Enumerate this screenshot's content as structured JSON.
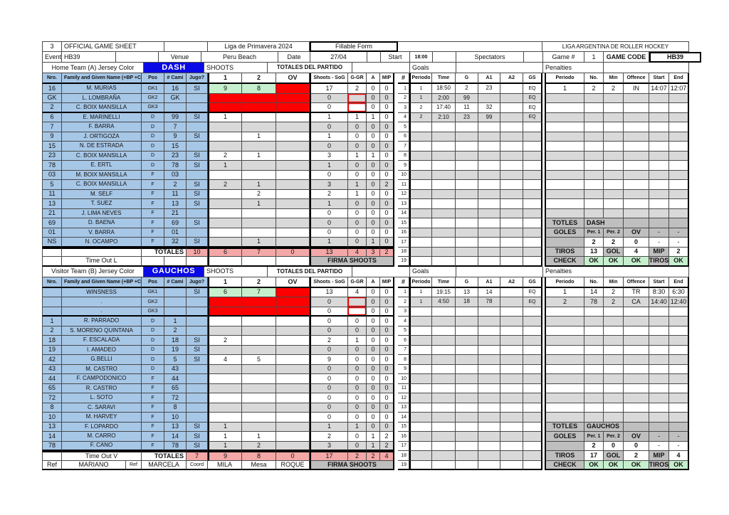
{
  "header": {
    "sheet_no": "3",
    "title": "OFFICIAL GAME SHEET",
    "league": "Liga de Primavera 2024",
    "form_type": "Fillable Form",
    "org": "LIGA ARGENTINA DE ROLLER HOCKEY",
    "event_label": "Event",
    "event": "HB39",
    "venue_label": "Venue",
    "venue": "Peru Beach",
    "date_label": "Date",
    "date": "27/04",
    "start_label": "Start",
    "start": "18:00",
    "spectators_label": "Spectators",
    "game_no_label": "Game #",
    "game_no": "1",
    "game_code_label": "GAME CODE",
    "game_code": "HB39"
  },
  "columns": {
    "nro": "Nro.",
    "name": "Family and Given Name (+BP +C",
    "pos": "Pos",
    "cami": "# Cami",
    "jugo": "Jugo?",
    "p1": "1",
    "p2": "2",
    "ov": "OV",
    "sog": "Shoots - SoG",
    "ggr": "G-GR",
    "a": "A",
    "mip": "MIP",
    "num": "#",
    "g_periodo": "Periodo",
    "time": "Time",
    "g": "G",
    "a1": "A1",
    "a2": "A2",
    "gs": "GS",
    "pen_periodo": "Periodo",
    "no": "No.",
    "min": "Min",
    "offence": "Offence",
    "start": "Start",
    "end": "End"
  },
  "officials": {
    "ref1_label": "Ref",
    "ref1": "MARIANO",
    "ref2_label": "Ref",
    "ref2": "MARCELA",
    "coord_label": "Coord",
    "coord": "MILA",
    "mesa_label": "Mesa",
    "mesa": "ROQUE"
  },
  "colors": {
    "jersey_blue": "#0A0AE6",
    "roster_blue": "#A7C7E7",
    "blocked_red": "#FE0000",
    "gk_green": "#C6EFCE",
    "totals_pink": "#F4A7A7",
    "band_gray": "#D9D9D9",
    "label_gray": "#BFBFBF",
    "ok_green": "#C6EFCE"
  },
  "teams": [
    {
      "section_label": "Home Team (A) Jersey Color",
      "name": "DASH",
      "shoots_label": "SHOOTS",
      "totals_header": "TOTALES DEL PARTIDO",
      "goals_label": "Goals",
      "penalties_label": "Penalties",
      "timeout_label": "Time Out L",
      "firma_label": "FIRMA SHOOTS",
      "players": [
        {
          "nro": "16",
          "name": "M. MURIAS",
          "pos": "GK1",
          "cami": "16",
          "jugo": "SI",
          "s1": "9",
          "s2": "8",
          "ov": "",
          "sog": "17",
          "ggr": "2",
          "a": "0",
          "mip": "0"
        },
        {
          "nro": "GK",
          "name": "L. LOMBRAÑA",
          "pos": "GK2",
          "cami": "GK",
          "jugo": "",
          "s1": "",
          "s2": "",
          "ov": "",
          "sog": "0",
          "ggr": "",
          "a": "0",
          "mip": "0"
        },
        {
          "nro": "2",
          "name": "C. BOIX MANSILLA",
          "pos": "GK3",
          "cami": "",
          "jugo": "",
          "s1": "",
          "s2": "",
          "ov": "",
          "sog": "0",
          "ggr": "",
          "a": "0",
          "mip": "0"
        },
        {
          "nro": "6",
          "name": "E. MARINELLI",
          "pos": "D",
          "cami": "99",
          "jugo": "SI",
          "s1": "1",
          "s2": "",
          "ov": "",
          "sog": "1",
          "ggr": "1",
          "a": "1",
          "mip": "0"
        },
        {
          "nro": "7",
          "name": "F. BARRA",
          "pos": "D",
          "cami": "7",
          "jugo": "",
          "s1": "",
          "s2": "",
          "ov": "",
          "sog": "0",
          "ggr": "0",
          "a": "0",
          "mip": "0"
        },
        {
          "nro": "9",
          "name": "J. ORTIGOZA",
          "pos": "D",
          "cami": "9",
          "jugo": "SI",
          "s1": "",
          "s2": "1",
          "ov": "",
          "sog": "1",
          "ggr": "0",
          "a": "0",
          "mip": "0"
        },
        {
          "nro": "15",
          "name": "N. DE ESTRADA",
          "pos": "D",
          "cami": "15",
          "jugo": "",
          "s1": "",
          "s2": "",
          "ov": "",
          "sog": "0",
          "ggr": "0",
          "a": "0",
          "mip": "0"
        },
        {
          "nro": "23",
          "name": "C. BOIX MANSILLA",
          "pos": "D",
          "cami": "23",
          "jugo": "SI",
          "s1": "2",
          "s2": "1",
          "ov": "",
          "sog": "3",
          "ggr": "1",
          "a": "1",
          "mip": "0"
        },
        {
          "nro": "78",
          "name": "E. ERTL",
          "pos": "D",
          "cami": "78",
          "jugo": "SI",
          "s1": "1",
          "s2": "",
          "ov": "",
          "sog": "1",
          "ggr": "0",
          "a": "0",
          "mip": "0"
        },
        {
          "nro": "03",
          "name": "M. BOIX MANSILLA",
          "pos": "F",
          "cami": "03",
          "jugo": "",
          "s1": "",
          "s2": "",
          "ov": "",
          "sog": "0",
          "ggr": "0",
          "a": "0",
          "mip": "0"
        },
        {
          "nro": "5",
          "name": "C. BOIX MANSILLA",
          "pos": "F",
          "cami": "2",
          "jugo": "SI",
          "s1": "2",
          "s2": "1",
          "ov": "",
          "sog": "3",
          "ggr": "1",
          "a": "0",
          "mip": "2"
        },
        {
          "nro": "11",
          "name": "M. SELF",
          "pos": "F",
          "cami": "11",
          "jugo": "SI",
          "s1": "",
          "s2": "2",
          "ov": "",
          "sog": "2",
          "ggr": "1",
          "a": "0",
          "mip": "0"
        },
        {
          "nro": "13",
          "name": "T. SUEZ",
          "pos": "F",
          "cami": "13",
          "jugo": "SI",
          "s1": "",
          "s2": "1",
          "ov": "",
          "sog": "1",
          "ggr": "0",
          "a": "0",
          "mip": "0"
        },
        {
          "nro": "21",
          "name": "J. LIMA NEVES",
          "pos": "F",
          "cami": "21",
          "jugo": "",
          "s1": "",
          "s2": "",
          "ov": "",
          "sog": "0",
          "ggr": "0",
          "a": "0",
          "mip": "0"
        },
        {
          "nro": "69",
          "name": "D. BAENA",
          "pos": "F",
          "cami": "69",
          "jugo": "SI",
          "s1": "",
          "s2": "",
          "ov": "",
          "sog": "0",
          "ggr": "0",
          "a": "0",
          "mip": "0"
        },
        {
          "nro": "01",
          "name": "V. BARRA",
          "pos": "F",
          "cami": "01",
          "jugo": "",
          "s1": "",
          "s2": "",
          "ov": "",
          "sog": "0",
          "ggr": "0",
          "a": "0",
          "mip": "0"
        },
        {
          "nro": "NS",
          "name": "N. OCAMPO",
          "pos": "F",
          "cami": "32",
          "jugo": "SI",
          "s1": "",
          "s2": "1",
          "ov": "",
          "sog": "1",
          "ggr": "0",
          "a": "1",
          "mip": "0"
        }
      ],
      "totals": {
        "label": "TOTALES",
        "jugo": "10",
        "s1": "6",
        "s2": "7",
        "ov": "0",
        "sog": "13",
        "ggr": "4",
        "a": "3",
        "mip": "2"
      },
      "goals": [
        {
          "n": "1",
          "periodo": "1",
          "time": "18:50",
          "g": "2",
          "a1": "23",
          "a2": "",
          "gs": "EQ"
        },
        {
          "n": "2",
          "periodo": "1",
          "time": "2:00",
          "g": "99",
          "a1": "",
          "a2": "",
          "gs": "EQ"
        },
        {
          "n": "3",
          "periodo": "2",
          "time": "17:40",
          "g": "11",
          "a1": "32",
          "a2": "",
          "gs": "EQ"
        },
        {
          "n": "4",
          "periodo": "2",
          "time": "2:10",
          "g": "23",
          "a1": "99",
          "a2": "",
          "gs": "EQ"
        },
        {
          "n": "5"
        },
        {
          "n": "6"
        },
        {
          "n": "7"
        },
        {
          "n": "8"
        },
        {
          "n": "9"
        },
        {
          "n": "10"
        },
        {
          "n": "11"
        },
        {
          "n": "12"
        },
        {
          "n": "13"
        },
        {
          "n": "14"
        },
        {
          "n": "15"
        },
        {
          "n": "16"
        },
        {
          "n": "17"
        },
        {
          "n": "18"
        },
        {
          "n": "19"
        }
      ],
      "penalties": [
        {
          "periodo": "1",
          "no": "2",
          "min": "2",
          "offence": "IN",
          "start": "14:07",
          "end": "12:07"
        },
        {},
        {},
        {},
        {},
        {},
        {},
        {},
        {},
        {},
        {},
        {},
        {},
        {}
      ],
      "summary": {
        "totles_label": "TOTLES",
        "team": "DASH",
        "goles_label": "GOLES",
        "per1_label": "Per. 1",
        "per2_label": "Per. 2",
        "ov_label": "OV",
        "dash_a": "-",
        "dash_b": "-",
        "per1": "2",
        "per2": "2",
        "ov": "0",
        "dash_c": "-",
        "dash_d": "-",
        "tiros_label": "TIROS",
        "tiros": "13",
        "gol_label": "GOL",
        "gol": "4",
        "mip_label": "MIP",
        "mip": "2",
        "check_label": "CHECK",
        "check1": "OK",
        "check2": "OK",
        "check3": "OK",
        "check_tiros_label": "TIROS",
        "check4": "OK"
      }
    },
    {
      "section_label": "Visitor Team (B) Jersey Color",
      "name": "GAUCHOS",
      "shoots_label": "SHOOTS",
      "totals_header": "TOTALES DEL PARTIDO",
      "goals_label": "Goals",
      "penalties_label": "Penalties",
      "timeout_label": "Time Out V",
      "firma_label": "FIRMA SHOOTS",
      "players": [
        {
          "nro": "",
          "name": "WINSNESS",
          "pos": "GK1",
          "cami": "",
          "jugo": "SI",
          "s1": "6",
          "s2": "7",
          "ov": "",
          "sog": "13",
          "ggr": "4",
          "a": "0",
          "mip": "0"
        },
        {
          "nro": "",
          "name": ".",
          "pos": "GK2",
          "cami": "",
          "jugo": "",
          "s1": "",
          "s2": "",
          "ov": "",
          "sog": "0",
          "ggr": "",
          "a": "0",
          "mip": "0"
        },
        {
          "nro": "",
          "name": ".",
          "pos": "GK3",
          "cami": "",
          "jugo": "",
          "s1": "",
          "s2": "",
          "ov": "",
          "sog": "0",
          "ggr": "",
          "a": "0",
          "mip": "0"
        },
        {
          "nro": "1",
          "name": "R. PARRADO",
          "pos": "D",
          "cami": "1",
          "jugo": "",
          "s1": "",
          "s2": "",
          "ov": "",
          "sog": "0",
          "ggr": "0",
          "a": "0",
          "mip": "0"
        },
        {
          "nro": "2",
          "name": "S. MORENO QUINTANA",
          "pos": "D",
          "cami": "2",
          "jugo": "",
          "s1": "",
          "s2": "",
          "ov": "",
          "sog": "0",
          "ggr": "0",
          "a": "0",
          "mip": "0"
        },
        {
          "nro": "18",
          "name": "F. ESCALADA",
          "pos": "D",
          "cami": "18",
          "jugo": "SI",
          "s1": "2",
          "s2": "",
          "ov": "",
          "sog": "2",
          "ggr": "1",
          "a": "0",
          "mip": "0"
        },
        {
          "nro": "19",
          "name": "I. AMADEO",
          "pos": "D",
          "cami": "19",
          "jugo": "SI",
          "s1": "",
          "s2": "",
          "ov": "",
          "sog": "0",
          "ggr": "0",
          "a": "0",
          "mip": "0"
        },
        {
          "nro": "42",
          "name": "G.BELLI",
          "pos": "D",
          "cami": "5",
          "jugo": "SI",
          "s1": "4",
          "s2": "5",
          "ov": "",
          "sog": "9",
          "ggr": "0",
          "a": "0",
          "mip": "0"
        },
        {
          "nro": "43",
          "name": "M. CASTRO",
          "pos": "D",
          "cami": "43",
          "jugo": "",
          "s1": "",
          "s2": "",
          "ov": "",
          "sog": "0",
          "ggr": "0",
          "a": "0",
          "mip": "0"
        },
        {
          "nro": "44",
          "name": "F. CAMPODONICO",
          "pos": "F",
          "cami": "44",
          "jugo": "",
          "s1": "",
          "s2": "",
          "ov": "",
          "sog": "0",
          "ggr": "0",
          "a": "0",
          "mip": "0"
        },
        {
          "nro": "65",
          "name": "R. CASTRO",
          "pos": "F",
          "cami": "65",
          "jugo": "",
          "s1": "",
          "s2": "",
          "ov": "",
          "sog": "0",
          "ggr": "0",
          "a": "0",
          "mip": "0"
        },
        {
          "nro": "72",
          "name": "L. SOTO",
          "pos": "F",
          "cami": "72",
          "jugo": "",
          "s1": "",
          "s2": "",
          "ov": "",
          "sog": "0",
          "ggr": "0",
          "a": "0",
          "mip": "0"
        },
        {
          "nro": "8",
          "name": "C. SARAVI",
          "pos": "F",
          "cami": "8",
          "jugo": "",
          "s1": "",
          "s2": "",
          "ov": "",
          "sog": "0",
          "ggr": "0",
          "a": "0",
          "mip": "0"
        },
        {
          "nro": "10",
          "name": "M. HARVEY",
          "pos": "F",
          "cami": "10",
          "jugo": "",
          "s1": "",
          "s2": "",
          "ov": "",
          "sog": "0",
          "ggr": "0",
          "a": "0",
          "mip": "0"
        },
        {
          "nro": "13",
          "name": "F. LOPARDO",
          "pos": "F",
          "cami": "13",
          "jugo": "SI",
          "s1": "1",
          "s2": "",
          "ov": "",
          "sog": "1",
          "ggr": "1",
          "a": "0",
          "mip": "0"
        },
        {
          "nro": "14",
          "name": "M. CARRO",
          "pos": "F",
          "cami": "14",
          "jugo": "SI",
          "s1": "1",
          "s2": "1",
          "ov": "",
          "sog": "2",
          "ggr": "0",
          "a": "1",
          "mip": "2"
        },
        {
          "nro": "78",
          "name": "F. CANO",
          "pos": "F",
          "cami": "78",
          "jugo": "SI",
          "s1": "1",
          "s2": "2",
          "ov": "",
          "sog": "3",
          "ggr": "0",
          "a": "1",
          "mip": "2"
        }
      ],
      "totals": {
        "label": "TOTALES",
        "jugo": "7",
        "s1": "9",
        "s2": "8",
        "ov": "0",
        "sog": "17",
        "ggr": "2",
        "a": "2",
        "mip": "4"
      },
      "goals": [
        {
          "n": "1",
          "periodo": "1",
          "time": "19:15",
          "g": "13",
          "a1": "14",
          "a2": "",
          "gs": "EQ"
        },
        {
          "n": "2",
          "periodo": "1",
          "time": "4:50",
          "g": "18",
          "a1": "78",
          "a2": "",
          "gs": "EQ"
        },
        {
          "n": "3"
        },
        {
          "n": "4"
        },
        {
          "n": "5"
        },
        {
          "n": "6"
        },
        {
          "n": "7"
        },
        {
          "n": "8"
        },
        {
          "n": "9"
        },
        {
          "n": "10"
        },
        {
          "n": "11"
        },
        {
          "n": "12"
        },
        {
          "n": "13"
        },
        {
          "n": "14"
        },
        {
          "n": "15"
        },
        {
          "n": "16"
        },
        {
          "n": "17"
        },
        {
          "n": "18"
        },
        {
          "n": "19"
        }
      ],
      "penalties": [
        {
          "periodo": "1",
          "no": "14",
          "min": "2",
          "offence": "TR",
          "start": "8:30",
          "end": "6:30"
        },
        {
          "periodo": "2",
          "no": "78",
          "min": "2",
          "offence": "CA",
          "start": "14:40",
          "end": "12:40"
        },
        {},
        {},
        {},
        {},
        {},
        {},
        {},
        {},
        {},
        {},
        {},
        {}
      ],
      "summary": {
        "totles_label": "TOTLES",
        "team": "GAUCHOS",
        "goles_label": "GOLES",
        "per1_label": "Per. 1",
        "per2_label": "Per. 2",
        "ov_label": "OV",
        "dash_a": "-",
        "dash_b": "-",
        "per1": "2",
        "per2": "0",
        "ov": "0",
        "dash_c": "-",
        "dash_d": "-",
        "tiros_label": "TIROS",
        "tiros": "17",
        "gol_label": "GOL",
        "gol": "2",
        "mip_label": "MIP",
        "mip": "4",
        "check_label": "CHECK",
        "check1": "OK",
        "check2": "OK",
        "check3": "OK",
        "check_tiros_label": "TIROS",
        "check4": "OK"
      }
    }
  ]
}
